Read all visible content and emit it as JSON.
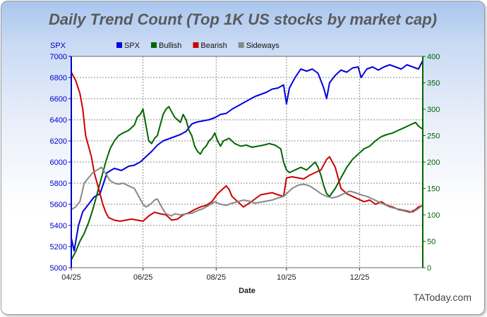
{
  "chart_data": {
    "type": "line",
    "title": "Daily Trend Count (Top 1K US stocks by market cap)",
    "xlabel": "Date",
    "ylabel_left": "SPX",
    "ylabel_right": "",
    "x_ticks": [
      "04/25",
      "06/25",
      "08/25",
      "10/25",
      "12/25"
    ],
    "x_range": [
      0,
      245
    ],
    "x_tick_positions": [
      0,
      50,
      101,
      150,
      201
    ],
    "left_axis": {
      "label": "SPX",
      "range": [
        5000,
        7000
      ],
      "ticks": [
        5000,
        5200,
        5400,
        5600,
        5800,
        6000,
        6200,
        6400,
        6600,
        6800,
        7000
      ],
      "color": "#0000cc"
    },
    "right_axis": {
      "range": [
        0,
        400
      ],
      "ticks": [
        0,
        50,
        100,
        150,
        200,
        250,
        300,
        350,
        400
      ],
      "color": "#006600"
    },
    "legend": [
      "SPX",
      "Bullish",
      "Bearish",
      "Sideways"
    ],
    "legend_position": "top",
    "grid": true,
    "series": [
      {
        "name": "SPX",
        "axis": "left",
        "color": "#0000dd",
        "points": [
          [
            0,
            5280
          ],
          [
            2,
            5160
          ],
          [
            5,
            5400
          ],
          [
            8,
            5530
          ],
          [
            12,
            5600
          ],
          [
            16,
            5670
          ],
          [
            20,
            5700
          ],
          [
            25,
            5900
          ],
          [
            30,
            5940
          ],
          [
            35,
            5920
          ],
          [
            40,
            5960
          ],
          [
            44,
            5970
          ],
          [
            48,
            6000
          ],
          [
            52,
            6050
          ],
          [
            56,
            6100
          ],
          [
            60,
            6160
          ],
          [
            64,
            6200
          ],
          [
            68,
            6220
          ],
          [
            72,
            6240
          ],
          [
            76,
            6260
          ],
          [
            80,
            6290
          ],
          [
            84,
            6360
          ],
          [
            88,
            6380
          ],
          [
            92,
            6390
          ],
          [
            96,
            6400
          ],
          [
            100,
            6420
          ],
          [
            104,
            6450
          ],
          [
            108,
            6460
          ],
          [
            112,
            6500
          ],
          [
            116,
            6530
          ],
          [
            120,
            6560
          ],
          [
            124,
            6590
          ],
          [
            128,
            6620
          ],
          [
            132,
            6640
          ],
          [
            136,
            6660
          ],
          [
            140,
            6690
          ],
          [
            144,
            6700
          ],
          [
            148,
            6730
          ],
          [
            150,
            6550
          ],
          [
            152,
            6700
          ],
          [
            156,
            6800
          ],
          [
            160,
            6880
          ],
          [
            164,
            6860
          ],
          [
            168,
            6880
          ],
          [
            172,
            6840
          ],
          [
            176,
            6700
          ],
          [
            178,
            6600
          ],
          [
            180,
            6750
          ],
          [
            184,
            6820
          ],
          [
            188,
            6870
          ],
          [
            192,
            6850
          ],
          [
            196,
            6890
          ],
          [
            200,
            6900
          ],
          [
            202,
            6800
          ],
          [
            206,
            6880
          ],
          [
            210,
            6900
          ],
          [
            214,
            6870
          ],
          [
            218,
            6900
          ],
          [
            222,
            6920
          ],
          [
            226,
            6900
          ],
          [
            230,
            6880
          ],
          [
            234,
            6920
          ],
          [
            238,
            6900
          ],
          [
            242,
            6880
          ],
          [
            245,
            6960
          ]
        ]
      },
      {
        "name": "Bullish",
        "axis": "right",
        "color": "#006600",
        "points": [
          [
            0,
            15
          ],
          [
            3,
            30
          ],
          [
            6,
            50
          ],
          [
            9,
            65
          ],
          [
            12,
            85
          ],
          [
            15,
            110
          ],
          [
            18,
            140
          ],
          [
            21,
            170
          ],
          [
            24,
            200
          ],
          [
            27,
            225
          ],
          [
            30,
            240
          ],
          [
            33,
            250
          ],
          [
            36,
            255
          ],
          [
            40,
            260
          ],
          [
            44,
            270
          ],
          [
            46,
            285
          ],
          [
            48,
            290
          ],
          [
            50,
            300
          ],
          [
            52,
            270
          ],
          [
            54,
            240
          ],
          [
            56,
            235
          ],
          [
            58,
            245
          ],
          [
            60,
            250
          ],
          [
            62,
            270
          ],
          [
            64,
            290
          ],
          [
            66,
            300
          ],
          [
            68,
            305
          ],
          [
            70,
            295
          ],
          [
            72,
            285
          ],
          [
            74,
            280
          ],
          [
            76,
            275
          ],
          [
            78,
            290
          ],
          [
            80,
            280
          ],
          [
            82,
            260
          ],
          [
            84,
            250
          ],
          [
            86,
            230
          ],
          [
            88,
            220
          ],
          [
            90,
            215
          ],
          [
            92,
            225
          ],
          [
            94,
            230
          ],
          [
            96,
            240
          ],
          [
            98,
            245
          ],
          [
            100,
            255
          ],
          [
            102,
            240
          ],
          [
            104,
            230
          ],
          [
            106,
            240
          ],
          [
            110,
            245
          ],
          [
            114,
            235
          ],
          [
            118,
            230
          ],
          [
            122,
            232
          ],
          [
            126,
            228
          ],
          [
            130,
            230
          ],
          [
            134,
            232
          ],
          [
            138,
            235
          ],
          [
            142,
            232
          ],
          [
            146,
            225
          ],
          [
            148,
            200
          ],
          [
            150,
            185
          ],
          [
            152,
            180
          ],
          [
            156,
            185
          ],
          [
            160,
            190
          ],
          [
            164,
            185
          ],
          [
            168,
            195
          ],
          [
            170,
            200
          ],
          [
            172,
            190
          ],
          [
            174,
            175
          ],
          [
            176,
            155
          ],
          [
            178,
            140
          ],
          [
            180,
            135
          ],
          [
            184,
            150
          ],
          [
            188,
            170
          ],
          [
            192,
            190
          ],
          [
            196,
            205
          ],
          [
            200,
            215
          ],
          [
            204,
            225
          ],
          [
            208,
            230
          ],
          [
            212,
            240
          ],
          [
            216,
            248
          ],
          [
            220,
            252
          ],
          [
            224,
            255
          ],
          [
            228,
            260
          ],
          [
            232,
            265
          ],
          [
            236,
            270
          ],
          [
            240,
            275
          ],
          [
            242,
            268
          ],
          [
            245,
            262
          ]
        ]
      },
      {
        "name": "Bearish",
        "axis": "right",
        "color": "#cc0000",
        "points": [
          [
            0,
            370
          ],
          [
            3,
            355
          ],
          [
            6,
            330
          ],
          [
            8,
            300
          ],
          [
            10,
            250
          ],
          [
            12,
            230
          ],
          [
            14,
            210
          ],
          [
            16,
            180
          ],
          [
            18,
            160
          ],
          [
            20,
            140
          ],
          [
            22,
            120
          ],
          [
            24,
            105
          ],
          [
            26,
            95
          ],
          [
            30,
            90
          ],
          [
            34,
            88
          ],
          [
            38,
            90
          ],
          [
            42,
            92
          ],
          [
            46,
            90
          ],
          [
            50,
            88
          ],
          [
            54,
            98
          ],
          [
            58,
            105
          ],
          [
            62,
            102
          ],
          [
            66,
            100
          ],
          [
            70,
            90
          ],
          [
            74,
            92
          ],
          [
            78,
            100
          ],
          [
            82,
            104
          ],
          [
            86,
            110
          ],
          [
            90,
            115
          ],
          [
            94,
            118
          ],
          [
            98,
            125
          ],
          [
            102,
            140
          ],
          [
            106,
            150
          ],
          [
            108,
            155
          ],
          [
            110,
            148
          ],
          [
            112,
            135
          ],
          [
            116,
            125
          ],
          [
            120,
            115
          ],
          [
            124,
            122
          ],
          [
            128,
            130
          ],
          [
            132,
            138
          ],
          [
            136,
            140
          ],
          [
            140,
            142
          ],
          [
            144,
            138
          ],
          [
            148,
            135
          ],
          [
            150,
            170
          ],
          [
            154,
            172
          ],
          [
            158,
            170
          ],
          [
            162,
            168
          ],
          [
            166,
            175
          ],
          [
            170,
            180
          ],
          [
            174,
            185
          ],
          [
            178,
            205
          ],
          [
            180,
            210
          ],
          [
            182,
            200
          ],
          [
            184,
            190
          ],
          [
            186,
            170
          ],
          [
            188,
            150
          ],
          [
            192,
            140
          ],
          [
            196,
            135
          ],
          [
            200,
            130
          ],
          [
            204,
            125
          ],
          [
            208,
            128
          ],
          [
            212,
            120
          ],
          [
            216,
            125
          ],
          [
            220,
            118
          ],
          [
            224,
            115
          ],
          [
            228,
            110
          ],
          [
            232,
            108
          ],
          [
            236,
            105
          ],
          [
            240,
            110
          ],
          [
            242,
            115
          ],
          [
            245,
            118
          ]
        ]
      },
      {
        "name": "Sideways",
        "axis": "right",
        "color": "#888888",
        "points": [
          [
            0,
            110
          ],
          [
            3,
            115
          ],
          [
            6,
            125
          ],
          [
            9,
            160
          ],
          [
            12,
            170
          ],
          [
            15,
            180
          ],
          [
            18,
            185
          ],
          [
            21,
            190
          ],
          [
            24,
            178
          ],
          [
            27,
            165
          ],
          [
            30,
            160
          ],
          [
            33,
            158
          ],
          [
            36,
            160
          ],
          [
            40,
            155
          ],
          [
            44,
            150
          ],
          [
            46,
            140
          ],
          [
            48,
            130
          ],
          [
            50,
            120
          ],
          [
            52,
            115
          ],
          [
            54,
            118
          ],
          [
            56,
            122
          ],
          [
            58,
            128
          ],
          [
            60,
            130
          ],
          [
            62,
            120
          ],
          [
            64,
            110
          ],
          [
            66,
            102
          ],
          [
            68,
            100
          ],
          [
            70,
            98
          ],
          [
            72,
            102
          ],
          [
            76,
            100
          ],
          [
            80,
            102
          ],
          [
            84,
            103
          ],
          [
            88,
            108
          ],
          [
            92,
            112
          ],
          [
            96,
            118
          ],
          [
            100,
            125
          ],
          [
            104,
            120
          ],
          [
            108,
            118
          ],
          [
            112,
            122
          ],
          [
            116,
            125
          ],
          [
            120,
            128
          ],
          [
            124,
            126
          ],
          [
            128,
            122
          ],
          [
            132,
            124
          ],
          [
            136,
            126
          ],
          [
            140,
            128
          ],
          [
            144,
            132
          ],
          [
            148,
            135
          ],
          [
            150,
            140
          ],
          [
            152,
            145
          ],
          [
            154,
            150
          ],
          [
            158,
            156
          ],
          [
            162,
            158
          ],
          [
            166,
            155
          ],
          [
            170,
            148
          ],
          [
            174,
            140
          ],
          [
            178,
            135
          ],
          [
            182,
            132
          ],
          [
            186,
            135
          ],
          [
            190,
            140
          ],
          [
            194,
            145
          ],
          [
            198,
            142
          ],
          [
            202,
            138
          ],
          [
            206,
            135
          ],
          [
            210,
            130
          ],
          [
            214,
            125
          ],
          [
            218,
            120
          ],
          [
            222,
            115
          ],
          [
            226,
            112
          ],
          [
            230,
            110
          ],
          [
            234,
            108
          ],
          [
            238,
            105
          ],
          [
            242,
            112
          ],
          [
            245,
            118
          ]
        ]
      }
    ]
  },
  "watermark": "TAToday.com"
}
